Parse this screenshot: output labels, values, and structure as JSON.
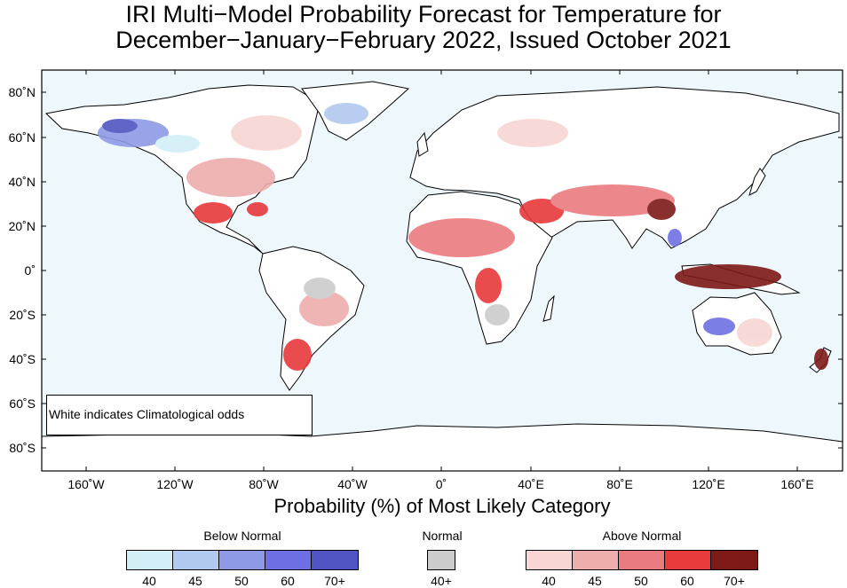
{
  "title": {
    "line1": "IRI Multi−Model Probability Forecast for Temperature for",
    "line2": "December−January−February 2022, Issued October 2021"
  },
  "map": {
    "ocean_color": "#eef7fc",
    "land_color": "#ffffff",
    "y_ticks": [
      "80˚N",
      "60˚N",
      "40˚N",
      "20˚N",
      "0˚",
      "20˚S",
      "40˚S",
      "60˚S",
      "80˚S"
    ],
    "x_ticks": [
      "160˚W",
      "120˚W",
      "80˚W",
      "40˚W",
      "0˚",
      "40˚E",
      "80˚E",
      "120˚E",
      "160˚E"
    ],
    "note": "White indicates Climatological odds"
  },
  "legend": {
    "heading": "Probability (%) of Most Likely Category",
    "below": {
      "label": "Below Normal",
      "colors": [
        "#d3eef7",
        "#b1c8ef",
        "#8f9ae6",
        "#6f6fe4",
        "#4f54c2"
      ],
      "ticks": [
        "40",
        "45",
        "50",
        "60",
        "70+"
      ]
    },
    "normal": {
      "label": "Normal",
      "color": "#cccccc",
      "tick": "40+"
    },
    "above": {
      "label": "Above Normal",
      "colors": [
        "#f7d6d3",
        "#eeaeac",
        "#ea7c80",
        "#e8393b",
        "#7d1a18"
      ],
      "ticks": [
        "40",
        "45",
        "50",
        "60",
        "70+"
      ]
    }
  }
}
